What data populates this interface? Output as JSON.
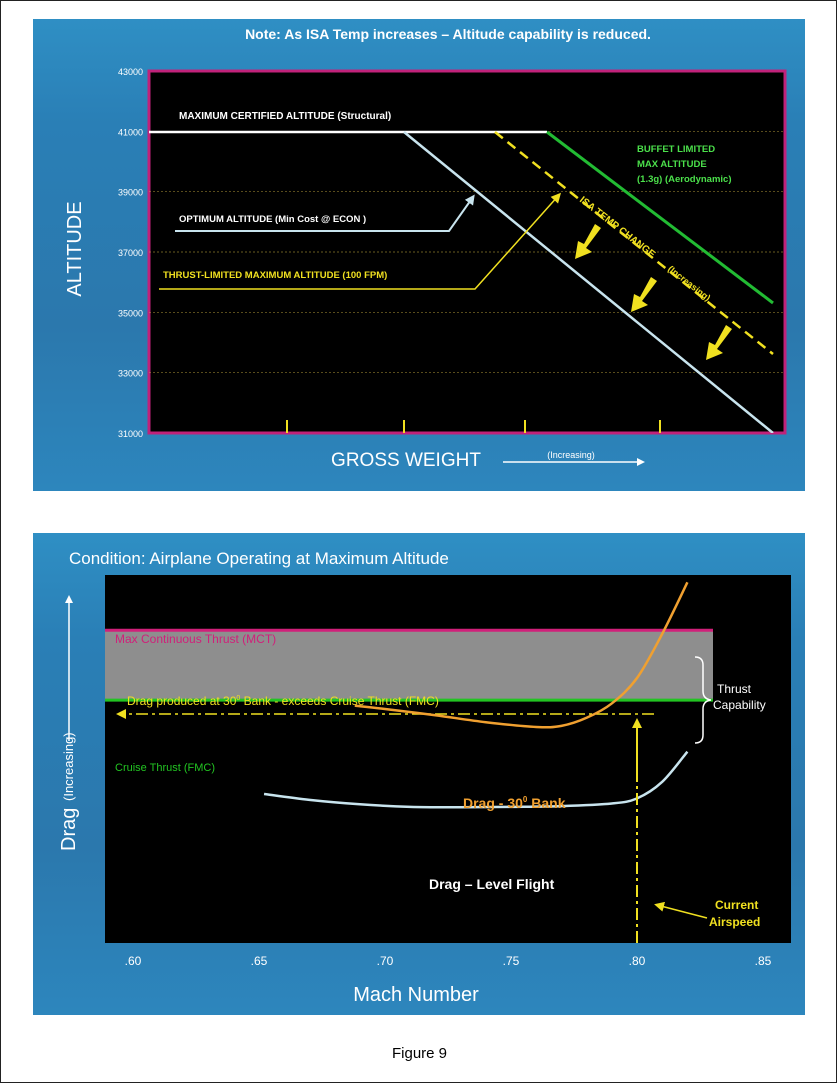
{
  "caption": "Figure 9",
  "chart_data": [
    {
      "type": "line",
      "title": "Note:  As ISA Temp increases – Altitude capability is reduced.",
      "ylabel": "ALTITUDE",
      "xlabel": "GROSS WEIGHT",
      "x_direction_label": "(Increasing)",
      "ylim": [
        31000,
        43000
      ],
      "y_ticks": [
        31000,
        33000,
        35000,
        37000,
        39000,
        41000,
        43000
      ],
      "y_tick_labels": [
        "31000",
        "33000",
        "35000",
        "37000",
        "39000",
        "41000",
        "43000"
      ],
      "grid": true,
      "colors": {
        "background": "#000000",
        "border": "#c0227a",
        "optimum": "#c8e4ee",
        "thrust_limited": "#f0e020",
        "buffet": "#22bb33",
        "label_white": "#ffffff",
        "label_yellow": "#f0e020",
        "label_green": "#4be04b"
      },
      "series": [
        {
          "name": "MAXIMUM CERTIFIED ALTITUDE (Structural)",
          "values": [
            41000,
            41000
          ]
        },
        {
          "name": "OPTIMUM ALTITUDE (Min Cost @ ECON )",
          "values": [
            41000,
            31000
          ]
        },
        {
          "name": "THRUST-LIMITED MAXIMUM ALTITUDE (100 FPM)",
          "values": [
            41000,
            33600
          ]
        },
        {
          "name": "BUFFET LIMITED MAX ALTITUDE (1.3g) (Aerodynamic)",
          "values": [
            41000,
            35400
          ]
        }
      ],
      "annotations": {
        "max_cert": "MAXIMUM CERTIFIED ALTITUDE  (Structural)",
        "optimum": "OPTIMUM ALTITUDE (Min Cost @ ECON )",
        "thrust_limited": "THRUST-LIMITED MAXIMUM ALTITUDE (100 FPM)",
        "buffet_line1": "BUFFET LIMITED",
        "buffet_line2": "MAX ALTITUDE",
        "buffet_line3": "(1.3g) (Aerodynamic)",
        "isa_temp_change": "ISA TEMP CHANGE",
        "isa_increasing": "(Increasing)"
      }
    },
    {
      "type": "line",
      "title": "Condition:  Airplane Operating at Maximum Altitude",
      "ylabel": "Drag",
      "ylabel_sub": "(Increasing)",
      "xlabel": "Mach Number",
      "xlim": [
        0.6,
        0.85
      ],
      "x_ticks": [
        0.6,
        0.65,
        0.7,
        0.75,
        0.8,
        0.85
      ],
      "x_tick_labels": [
        ".60",
        ".65",
        ".70",
        ".75",
        ".80",
        ".85"
      ],
      "colors": {
        "background": "#000000",
        "mct": "#d0207a",
        "cruise": "#22c422",
        "band": "#8e8e8e",
        "bank_drag": "#f0a030",
        "level_drag": "#c8e4ee",
        "dashed": "#f0e020",
        "label_yellow": "#f0e020",
        "label_white": "#ffffff"
      },
      "levels": {
        "mct": 85,
        "cruise": 66
      },
      "series": [
        {
          "name": "Drag – 30° Bank",
          "x": [
            0.688,
            0.7,
            0.72,
            0.74,
            0.76,
            0.77,
            0.78,
            0.79,
            0.8,
            0.81,
            0.82
          ],
          "values": [
            64.5,
            63.6,
            61.9,
            60.0,
            58.7,
            59.0,
            61.2,
            65.1,
            72.0,
            84.0,
            98.0
          ]
        },
        {
          "name": "Drag – Level Flight",
          "x": [
            0.652,
            0.67,
            0.69,
            0.71,
            0.73,
            0.75,
            0.77,
            0.79,
            0.8,
            0.81,
            0.82
          ],
          "values": [
            40.5,
            38.9,
            37.7,
            37.0,
            36.9,
            37.0,
            37.2,
            37.9,
            39.3,
            43.8,
            52.0
          ]
        }
      ],
      "current_airspeed": 0.8,
      "annotations": {
        "mct": "Max Continuous Thrust (MCT)",
        "cruise": "Cruise Thrust (FMC)",
        "thrust_capability_1": "Thrust",
        "thrust_capability_2": "Capability",
        "drag_bank_note_a": "Drag produced  at 30",
        "drag_bank_note_b": " Bank -  exceeds Cruise Thrust (FMC)",
        "degree_mark": "0",
        "bank_label_a": "Drag - 30",
        "bank_label_b": " Bank",
        "level_label": "Drag – Level Flight",
        "current_1": "Current",
        "current_2": "Airspeed"
      }
    }
  ]
}
